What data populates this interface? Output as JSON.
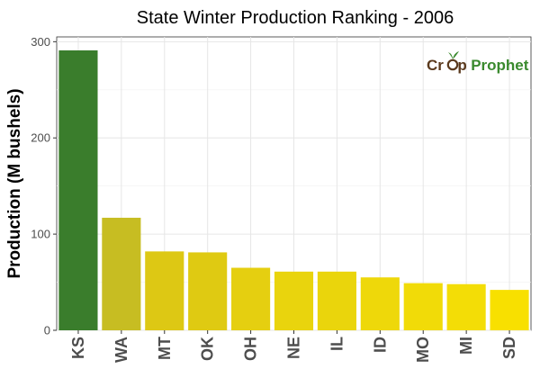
{
  "chart_data": {
    "type": "bar",
    "title": "State Winter  Production Ranking - 2006",
    "xlabel": "",
    "ylabel": "Production (M bushels)",
    "categories": [
      "KS",
      "WA",
      "MT",
      "OK",
      "OH",
      "NE",
      "IL",
      "ID",
      "MO",
      "MI",
      "SD"
    ],
    "values": [
      291,
      117,
      82,
      81,
      65,
      61,
      61,
      55,
      49,
      48,
      42
    ],
    "ylim": [
      0,
      305
    ],
    "yticks": [
      0,
      100,
      200,
      300
    ],
    "grid": true,
    "legend": "none",
    "bar_colors": [
      "#3a7d2c",
      "#c7bd22",
      "#ddc814",
      "#dfca12",
      "#e5cf10",
      "#e9d40d",
      "#ead50c",
      "#eed80a",
      "#f1db08",
      "#f3dd06",
      "#f8e000"
    ]
  },
  "brand": {
    "part1": "Cr",
    "part2": "p",
    "part3": "Prophet",
    "icon": "sprout-icon"
  }
}
